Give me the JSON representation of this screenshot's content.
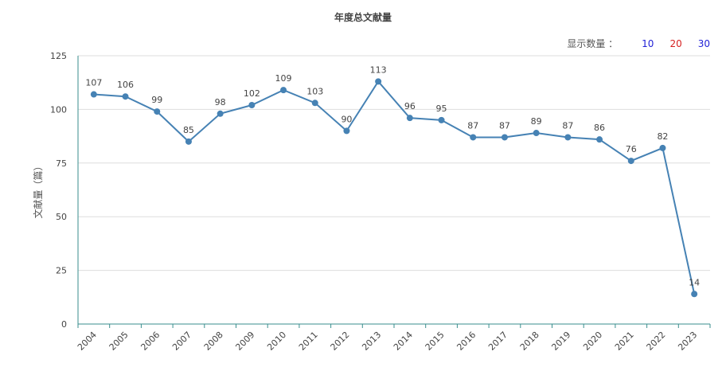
{
  "title": "年度总文献量",
  "count_control": {
    "label": "显示数量 ：",
    "options": [
      "10",
      "20",
      "30"
    ]
  },
  "colors": {
    "line": "#4682b4",
    "grid": "#dddddd",
    "axis": "#3a8e8e",
    "option_blue": "#1f1fd6",
    "option_red": "#d61f1f"
  },
  "chart_data": {
    "type": "line",
    "title": "年度总文献量",
    "ylabel": "文献量（篇）",
    "xlabel": "",
    "ylim": [
      0,
      125
    ],
    "yticks": [
      0,
      25,
      50,
      75,
      100,
      125
    ],
    "grid": true,
    "categories": [
      "2004",
      "2005",
      "2006",
      "2007",
      "2008",
      "2009",
      "2010",
      "2011",
      "2012",
      "2013",
      "2014",
      "2015",
      "2016",
      "2017",
      "2018",
      "2019",
      "2020",
      "2021",
      "2022",
      "2023"
    ],
    "series": [
      {
        "values": [
          107,
          106,
          99,
          85,
          98,
          102,
          109,
          103,
          90,
          113,
          96,
          95,
          87,
          87,
          89,
          87,
          86,
          76,
          82,
          14
        ]
      }
    ]
  }
}
